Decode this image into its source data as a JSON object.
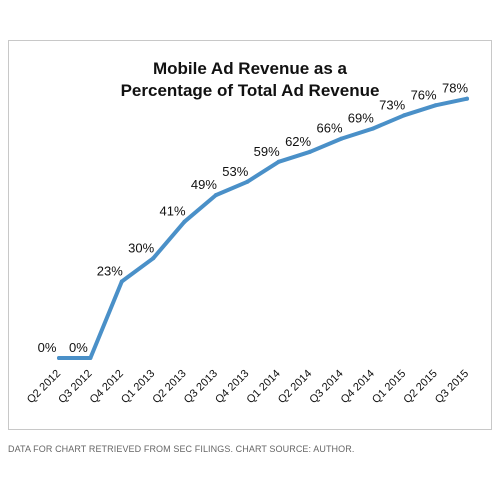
{
  "chart_data": {
    "type": "line",
    "title": "Mobile Ad Revenue as a Percentage of Total Ad Revenue",
    "title_lines": [
      "Mobile Ad Revenue as a",
      "Percentage of Total Ad Revenue"
    ],
    "categories": [
      "Q2 2012",
      "Q3 2012",
      "Q4 2012",
      "Q1 2013",
      "Q2 2013",
      "Q3 2013",
      "Q4 2013",
      "Q1 2014",
      "Q2 2014",
      "Q3 2014",
      "Q4 2014",
      "Q1 2015",
      "Q2 2015",
      "Q3 2015"
    ],
    "values": [
      0,
      0,
      23,
      30,
      41,
      49,
      53,
      59,
      62,
      66,
      69,
      73,
      76,
      78
    ],
    "data_labels": [
      "0%",
      "0%",
      "23%",
      "30%",
      "41%",
      "49%",
      "53%",
      "59%",
      "62%",
      "66%",
      "69%",
      "73%",
      "76%",
      "78%"
    ],
    "xlabel": "",
    "ylabel": "",
    "ylim": [
      0,
      80
    ],
    "grid": false,
    "legend": "none",
    "line_color": "#4a90c8"
  },
  "footer": {
    "source_text": "DATA FOR CHART RETRIEVED FROM SEC FILINGS. CHART SOURCE: AUTHOR."
  }
}
